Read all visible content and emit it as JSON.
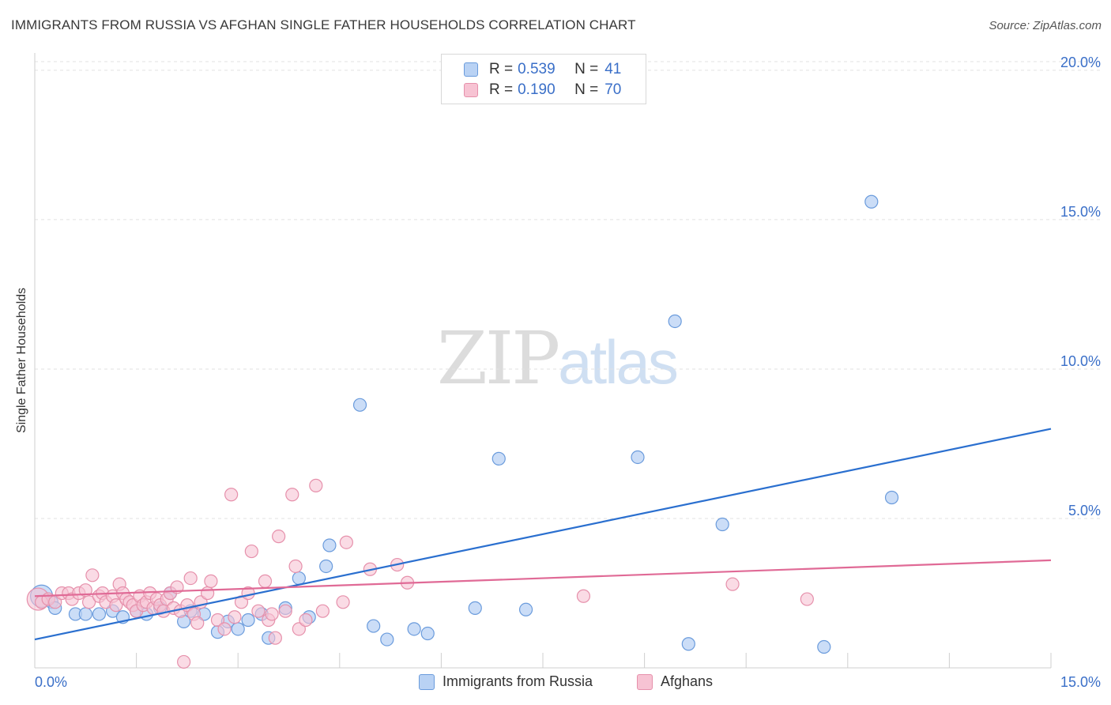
{
  "title": "IMMIGRANTS FROM RUSSIA VS AFGHAN SINGLE FATHER HOUSEHOLDS CORRELATION CHART",
  "source": "Source: ZipAtlas.com",
  "watermark": {
    "zip": "ZIP",
    "atlas": "atlas"
  },
  "legend": {
    "r_label": "R =",
    "n_label": "N =",
    "rows": [
      {
        "r": "0.539",
        "n": "41"
      },
      {
        "r": "0.190",
        "n": "70"
      }
    ]
  },
  "colors": {
    "blue_fill": "#b9d2f4",
    "blue_stroke": "#6a9bdc",
    "blue_line": "#2a6fcf",
    "pink_fill": "#f7c3d3",
    "pink_stroke": "#e690ab",
    "pink_line": "#e06a96",
    "tick_label": "#3a6fc8",
    "grid": "#e2e2e2"
  },
  "chart_data": {
    "type": "scatter",
    "title": "IMMIGRANTS FROM RUSSIA VS AFGHAN SINGLE FATHER HOUSEHOLDS CORRELATION CHART",
    "xlabel": "",
    "ylabel": "Single Father Households",
    "xlim": [
      0,
      15
    ],
    "ylim": [
      0,
      20.5
    ],
    "x_tick_labels": [
      "0.0%",
      "15.0%"
    ],
    "y_ticks": [
      5,
      10,
      15,
      20
    ],
    "y_tick_labels": [
      "5.0%",
      "10.0%",
      "15.0%",
      "20.0%"
    ],
    "grid": true,
    "legend_position": "top-center",
    "series": [
      {
        "name": "Immigrants from Russia",
        "color": "#b9d2f4",
        "trend": {
          "x": [
            0,
            15
          ],
          "y": [
            0.95,
            8.0
          ]
        },
        "points": [
          [
            0.1,
            2.4
          ],
          [
            0.25,
            2.2
          ],
          [
            0.3,
            2.0
          ],
          [
            0.6,
            1.8
          ],
          [
            0.75,
            1.8
          ],
          [
            0.95,
            1.8
          ],
          [
            1.15,
            1.9
          ],
          [
            1.3,
            1.7
          ],
          [
            1.5,
            1.9
          ],
          [
            1.65,
            1.8
          ],
          [
            1.85,
            2.0
          ],
          [
            2.0,
            2.5
          ],
          [
            2.2,
            1.55
          ],
          [
            2.3,
            1.9
          ],
          [
            2.5,
            1.8
          ],
          [
            2.7,
            1.2
          ],
          [
            2.85,
            1.55
          ],
          [
            3.0,
            1.3
          ],
          [
            3.15,
            1.6
          ],
          [
            3.35,
            1.8
          ],
          [
            3.45,
            1.0
          ],
          [
            3.7,
            2.0
          ],
          [
            3.9,
            3.0
          ],
          [
            4.05,
            1.7
          ],
          [
            4.3,
            3.4
          ],
          [
            4.35,
            4.1
          ],
          [
            4.8,
            8.8
          ],
          [
            5.0,
            1.4
          ],
          [
            5.2,
            0.95
          ],
          [
            5.6,
            1.3
          ],
          [
            5.8,
            1.15
          ],
          [
            6.5,
            2.0
          ],
          [
            6.85,
            7.0
          ],
          [
            7.25,
            1.95
          ],
          [
            8.9,
            7.05
          ],
          [
            9.45,
            11.6
          ],
          [
            9.65,
            0.8
          ],
          [
            10.15,
            4.8
          ],
          [
            11.65,
            0.7
          ],
          [
            12.35,
            15.6
          ],
          [
            12.65,
            5.7
          ]
        ]
      },
      {
        "name": "Afghans",
        "color": "#f7c3d3",
        "trend": {
          "x": [
            0,
            15
          ],
          "y": [
            2.4,
            3.6
          ]
        },
        "points": [
          [
            0.05,
            2.3
          ],
          [
            0.1,
            2.2
          ],
          [
            0.2,
            2.3
          ],
          [
            0.3,
            2.2
          ],
          [
            0.4,
            2.5
          ],
          [
            0.5,
            2.5
          ],
          [
            0.55,
            2.3
          ],
          [
            0.65,
            2.5
          ],
          [
            0.75,
            2.6
          ],
          [
            0.8,
            2.2
          ],
          [
            0.85,
            3.1
          ],
          [
            0.95,
            2.4
          ],
          [
            1.0,
            2.5
          ],
          [
            1.05,
            2.2
          ],
          [
            1.15,
            2.4
          ],
          [
            1.2,
            2.1
          ],
          [
            1.25,
            2.8
          ],
          [
            1.3,
            2.5
          ],
          [
            1.35,
            2.3
          ],
          [
            1.4,
            2.2
          ],
          [
            1.45,
            2.1
          ],
          [
            1.5,
            1.9
          ],
          [
            1.55,
            2.4
          ],
          [
            1.6,
            2.1
          ],
          [
            1.65,
            2.2
          ],
          [
            1.7,
            2.5
          ],
          [
            1.75,
            2.0
          ],
          [
            1.8,
            2.3
          ],
          [
            1.85,
            2.1
          ],
          [
            1.9,
            1.9
          ],
          [
            1.95,
            2.3
          ],
          [
            2.0,
            2.5
          ],
          [
            2.05,
            2.0
          ],
          [
            2.1,
            2.7
          ],
          [
            2.15,
            1.9
          ],
          [
            2.2,
            0.2
          ],
          [
            2.25,
            2.1
          ],
          [
            2.3,
            3.0
          ],
          [
            2.35,
            1.8
          ],
          [
            2.4,
            1.5
          ],
          [
            2.45,
            2.2
          ],
          [
            2.55,
            2.5
          ],
          [
            2.6,
            2.9
          ],
          [
            2.7,
            1.6
          ],
          [
            2.8,
            1.3
          ],
          [
            2.9,
            5.8
          ],
          [
            2.95,
            1.7
          ],
          [
            3.05,
            2.2
          ],
          [
            3.15,
            2.5
          ],
          [
            3.2,
            3.9
          ],
          [
            3.3,
            1.9
          ],
          [
            3.4,
            2.9
          ],
          [
            3.45,
            1.6
          ],
          [
            3.5,
            1.8
          ],
          [
            3.55,
            1.0
          ],
          [
            3.6,
            4.4
          ],
          [
            3.7,
            1.9
          ],
          [
            3.8,
            5.8
          ],
          [
            3.85,
            3.4
          ],
          [
            3.9,
            1.3
          ],
          [
            4.0,
            1.6
          ],
          [
            4.15,
            6.1
          ],
          [
            4.25,
            1.9
          ],
          [
            4.55,
            2.2
          ],
          [
            4.6,
            4.2
          ],
          [
            4.95,
            3.3
          ],
          [
            5.35,
            3.45
          ],
          [
            5.5,
            2.85
          ],
          [
            8.1,
            2.4
          ],
          [
            10.3,
            2.8
          ],
          [
            11.4,
            2.3
          ]
        ]
      }
    ]
  },
  "bottom_legend": [
    "Immigrants from Russia",
    "Afghans"
  ]
}
